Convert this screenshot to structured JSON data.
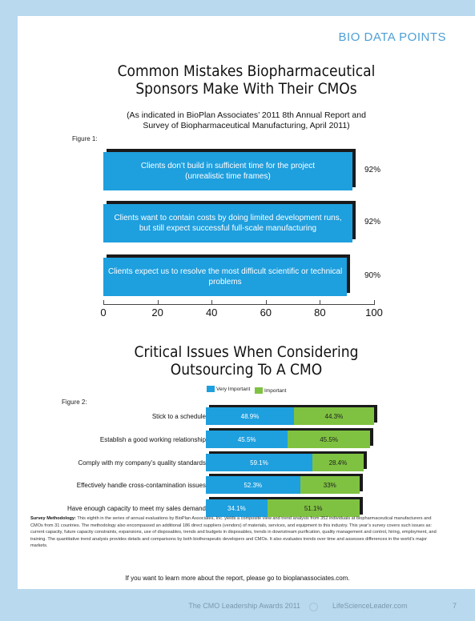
{
  "section_tag": "BIO DATA POINTS",
  "figure1": {
    "title_line1": "Common Mistakes Biopharmaceutical",
    "title_line2": "Sponsors Make With Their CMOs",
    "subtitle_line1": "(As indicated in BioPlan Associates’ 2011 8th Annual Report and",
    "subtitle_line2": "Survey of Biopharmaceutical Manufacturing, April 2011)",
    "label": "Figure 1:",
    "bars": [
      {
        "text_line1": "Clients don’t build in sufficient time for the project",
        "text_line2": "(unrealistic time frames)",
        "value": 92,
        "value_label": "92%"
      },
      {
        "text_line1": "Clients want to contain costs by doing limited development runs,",
        "text_line2": "but still expect successful full-scale manufacturing",
        "value": 92,
        "value_label": "92%"
      },
      {
        "text_line1": "Clients expect us to resolve the most difficult scientific  or technical problems",
        "text_line2": "",
        "value": 90,
        "value_label": "90%"
      }
    ],
    "axis_ticks": [
      "0",
      "20",
      "40",
      "60",
      "80",
      "100"
    ],
    "axis_min": 0,
    "axis_max": 100,
    "bar_color": "#1e9fde"
  },
  "figure2": {
    "title_line1": "Critical Issues When Considering",
    "title_line2": "Outsourcing To A CMO",
    "label": "Figure 2:",
    "legend": [
      {
        "label": "Very Important",
        "color": "#1e9fde"
      },
      {
        "label": "Important",
        "color": "#7fc241"
      }
    ],
    "rows": [
      {
        "label": "Stick to a schedule",
        "very_important": 48.9,
        "very_important_label": "48.9%",
        "important": 44.3,
        "important_label": "44.3%"
      },
      {
        "label": "Establish a good working relationship",
        "very_important": 45.5,
        "very_important_label": "45.5%",
        "important": 45.5,
        "important_label": "45.5%"
      },
      {
        "label": "Comply with my company’s quality standards",
        "very_important": 59.1,
        "very_important_label": "59.1%",
        "important": 28.4,
        "important_label": "28.4%"
      },
      {
        "label": "Effectively handle cross-contamination issues",
        "very_important": 52.3,
        "very_important_label": "52.3%",
        "important": 33,
        "important_label": "33%"
      },
      {
        "label": "Have enough capacity to meet my sales demand",
        "very_important": 34.1,
        "very_important_label": "34.1%",
        "important": 51.1,
        "important_label": "51.1%"
      }
    ]
  },
  "methodology": {
    "heading": "Survey Methodology:",
    "text": "This eighth in the series of annual evaluations by BioPlan Associates, Inc. yields a composite view and trend analysis from 352 individuals at biopharmaceutical manufacturers and CMOs from 31 countries. The methodology also encompassed an additional 186 direct suppliers (vendors) of materials, services, and equipment to this industry. This year’s survey covers such issues as: current capacity, future capacity constraints, expansions, use of disposables, trends and budgets in disposables, trends in downstream purification, quality management and control, hiring, employment, and training. The quantitative trend analysis provides details and comparisons by both biotherapeutic developers and CMOs. It also evaluates trends over time and assesses differences in the world’s major markets."
  },
  "learn_more": "If you want to learn more about the report, please go to bioplanassociates.com.",
  "footer": {
    "left": "The CMO Leadership Awards 2011",
    "right": "LifeScienceLeader.com",
    "page_number": "7"
  }
}
